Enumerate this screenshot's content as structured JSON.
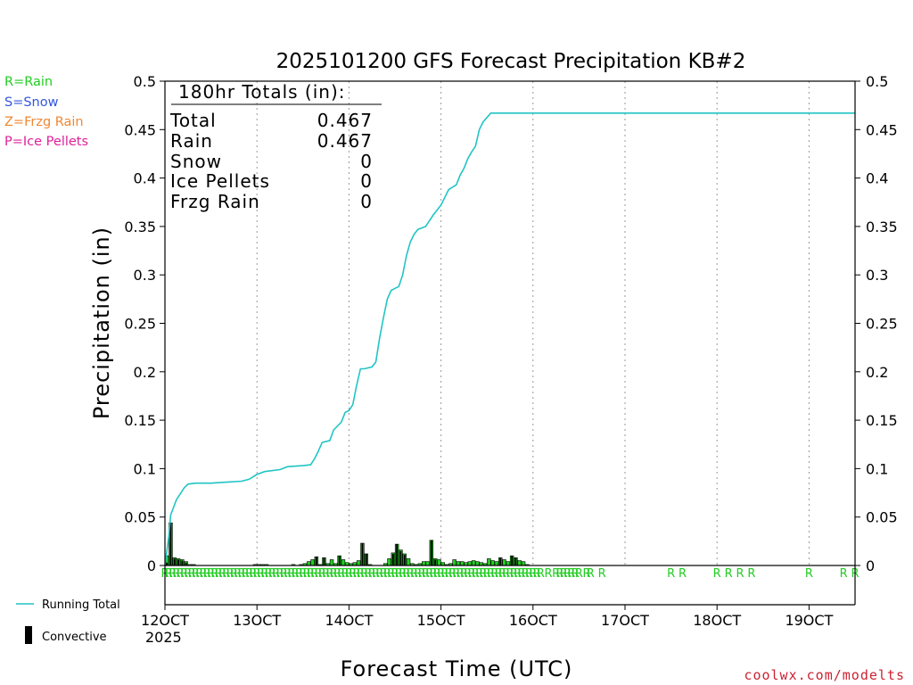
{
  "chart_data": {
    "type": "bar",
    "title": "2025101200 GFS Forecast Precipitation KB#2",
    "ylabel": "Precipitation (in)",
    "xlabel": "Forecast Time (UTC)",
    "ylim": [
      0,
      0.5
    ],
    "xlim_hours": [
      0,
      180
    ],
    "y_ticks": [
      "0",
      "0.05",
      "0.1",
      "0.15",
      "0.2",
      "0.25",
      "0.3",
      "0.35",
      "0.4",
      "0.45",
      "0.5"
    ],
    "x_ticks": [
      {
        "hour": 0,
        "label": "12OCT"
      },
      {
        "hour": 24,
        "label": "13OCT"
      },
      {
        "hour": 48,
        "label": "14OCT"
      },
      {
        "hour": 72,
        "label": "15OCT"
      },
      {
        "hour": 96,
        "label": "16OCT"
      },
      {
        "hour": 120,
        "label": "17OCT"
      },
      {
        "hour": 144,
        "label": "18OCT"
      },
      {
        "hour": 168,
        "label": "19OCT"
      }
    ],
    "year_label": "2025",
    "type_legend": [
      {
        "label": "R=Rain",
        "color": "#22cc22"
      },
      {
        "label": "S=Snow",
        "color": "#3355dd"
      },
      {
        "label": "Z=Frzg Rain",
        "color": "#ee8833"
      },
      {
        "label": "P=Ice Pellets",
        "color": "#dd2299"
      }
    ],
    "series_legend": [
      {
        "label": "Running Total",
        "color": "#22c4c4"
      },
      {
        "label": "Convective",
        "color": "#000000"
      }
    ],
    "totals_box": {
      "header": "180hr Totals (in):",
      "rows": [
        {
          "label": "Total",
          "value": "0.467"
        },
        {
          "label": "Rain",
          "value": "0.467"
        },
        {
          "label": "Snow",
          "value": "0"
        },
        {
          "label": "Ice Pellets",
          "value": "0"
        },
        {
          "label": "Frzg Rain",
          "value": "0"
        }
      ]
    },
    "running_total": [
      [
        0,
        0
      ],
      [
        1,
        0.03
      ],
      [
        1.5,
        0.052
      ],
      [
        3,
        0.068
      ],
      [
        5,
        0.08
      ],
      [
        6,
        0.084
      ],
      [
        8,
        0.085
      ],
      [
        12,
        0.085
      ],
      [
        16,
        0.086
      ],
      [
        20,
        0.087
      ],
      [
        22,
        0.089
      ],
      [
        24,
        0.094
      ],
      [
        26,
        0.097
      ],
      [
        30,
        0.099
      ],
      [
        32,
        0.102
      ],
      [
        36,
        0.103
      ],
      [
        38,
        0.104
      ],
      [
        39,
        0.11
      ],
      [
        40,
        0.118
      ],
      [
        41,
        0.127
      ],
      [
        43,
        0.129
      ],
      [
        44,
        0.14
      ],
      [
        46,
        0.148
      ],
      [
        47,
        0.158
      ],
      [
        48,
        0.16
      ],
      [
        49,
        0.166
      ],
      [
        50,
        0.186
      ],
      [
        51,
        0.203
      ],
      [
        52,
        0.203
      ],
      [
        54,
        0.205
      ],
      [
        55,
        0.21
      ],
      [
        56,
        0.235
      ],
      [
        57,
        0.256
      ],
      [
        58,
        0.275
      ],
      [
        59,
        0.284
      ],
      [
        61,
        0.288
      ],
      [
        62,
        0.3
      ],
      [
        63,
        0.32
      ],
      [
        64,
        0.334
      ],
      [
        65,
        0.342
      ],
      [
        66,
        0.347
      ],
      [
        68,
        0.35
      ],
      [
        70,
        0.362
      ],
      [
        72,
        0.372
      ],
      [
        73,
        0.38
      ],
      [
        74,
        0.388
      ],
      [
        76,
        0.393
      ],
      [
        77,
        0.403
      ],
      [
        78,
        0.41
      ],
      [
        79,
        0.42
      ],
      [
        80,
        0.427
      ],
      [
        81,
        0.433
      ],
      [
        82,
        0.45
      ],
      [
        83,
        0.458
      ],
      [
        85,
        0.467
      ],
      [
        180,
        0.467
      ]
    ],
    "hourly_precip": [
      [
        0.5,
        0.01
      ],
      [
        1.5,
        0.044
      ],
      [
        2.5,
        0.008
      ],
      [
        3.5,
        0.007
      ],
      [
        4.5,
        0.006
      ],
      [
        5.5,
        0.004
      ],
      [
        6.5,
        0.001
      ],
      [
        7.5,
        0.001
      ],
      [
        23.5,
        0.001
      ],
      [
        24.5,
        0.001
      ],
      [
        25.5,
        0.001
      ],
      [
        26.5,
        0.001
      ],
      [
        33.5,
        0.001
      ],
      [
        35.5,
        0.001
      ],
      [
        36.5,
        0.002
      ],
      [
        37.5,
        0.004
      ],
      [
        38.5,
        0.006
      ],
      [
        39.5,
        0.009
      ],
      [
        40.5,
        0.001
      ],
      [
        41.5,
        0.008
      ],
      [
        42.5,
        0.002
      ],
      [
        43.5,
        0.006
      ],
      [
        44.5,
        0.002
      ],
      [
        45.5,
        0.01
      ],
      [
        46.5,
        0.006
      ],
      [
        47.5,
        0.003
      ],
      [
        48.5,
        0.002
      ],
      [
        49.5,
        0.003
      ],
      [
        50.5,
        0.005
      ],
      [
        51.5,
        0.023
      ],
      [
        52.5,
        0.012
      ],
      [
        53.5,
        0.001
      ],
      [
        57.5,
        0.002
      ],
      [
        58.5,
        0.007
      ],
      [
        59.5,
        0.013
      ],
      [
        60.5,
        0.022
      ],
      [
        61.5,
        0.016
      ],
      [
        62.5,
        0.012
      ],
      [
        63.5,
        0.007
      ],
      [
        64.5,
        0.002
      ],
      [
        65.5,
        0.001
      ],
      [
        66.5,
        0.002
      ],
      [
        67.5,
        0.004
      ],
      [
        68.5,
        0.004
      ],
      [
        69.5,
        0.026
      ],
      [
        70.5,
        0.007
      ],
      [
        71.5,
        0.006
      ],
      [
        72.5,
        0.003
      ],
      [
        73.5,
        0.001
      ],
      [
        74.5,
        0.002
      ],
      [
        75.5,
        0.006
      ],
      [
        76.5,
        0.004
      ],
      [
        77.5,
        0.004
      ],
      [
        78.5,
        0.003
      ],
      [
        79.5,
        0.004
      ],
      [
        80.5,
        0.005
      ],
      [
        81.5,
        0.004
      ],
      [
        82.5,
        0.003
      ],
      [
        83.5,
        0.002
      ],
      [
        84.5,
        0.007
      ],
      [
        85.5,
        0.005
      ],
      [
        86.5,
        0.004
      ],
      [
        87.5,
        0.008
      ],
      [
        88.5,
        0.006
      ],
      [
        89.5,
        0.004
      ],
      [
        90.5,
        0.01
      ],
      [
        91.5,
        0.008
      ],
      [
        92.5,
        0.005
      ],
      [
        93.5,
        0.004
      ],
      [
        94.5,
        0.001
      ]
    ],
    "convective_precip": [
      [
        0.5,
        0.003
      ],
      [
        1.5,
        0.044
      ],
      [
        2.5,
        0.007
      ],
      [
        3.5,
        0.006
      ],
      [
        4.5,
        0.005
      ],
      [
        5.5,
        0.003
      ],
      [
        39.5,
        0.009
      ],
      [
        41.5,
        0.008
      ],
      [
        45.5,
        0.01
      ],
      [
        51.5,
        0.023
      ],
      [
        52.5,
        0.012
      ],
      [
        59.5,
        0.012
      ],
      [
        60.5,
        0.022
      ],
      [
        61.5,
        0.015
      ],
      [
        62.5,
        0.011
      ],
      [
        69.5,
        0.026
      ],
      [
        70.5,
        0.006
      ],
      [
        87.5,
        0.008
      ],
      [
        90.5,
        0.01
      ],
      [
        91.5,
        0.008
      ]
    ],
    "precip_type_markers": {
      "symbol": "R",
      "hours": [
        0,
        1,
        2,
        3,
        4,
        5,
        6,
        7,
        8,
        9,
        10,
        11,
        12,
        13,
        14,
        15,
        16,
        17,
        18,
        19,
        20,
        21,
        22,
        23,
        24,
        25,
        26,
        27,
        28,
        29,
        30,
        31,
        32,
        33,
        34,
        35,
        36,
        37,
        38,
        39,
        40,
        41,
        42,
        43,
        44,
        45,
        46,
        47,
        48,
        49,
        50,
        51,
        52,
        53,
        54,
        55,
        56,
        57,
        58,
        59,
        60,
        61,
        62,
        63,
        64,
        65,
        66,
        67,
        68,
        69,
        70,
        71,
        72,
        73,
        74,
        75,
        76,
        77,
        78,
        79,
        80,
        81,
        82,
        83,
        84,
        85,
        86,
        87,
        88,
        89,
        90,
        91,
        92,
        93,
        94,
        95,
        96,
        97,
        98,
        100,
        102,
        103,
        104,
        105,
        106,
        107,
        108,
        110,
        111,
        114,
        132,
        135,
        144,
        147,
        150,
        153,
        168,
        177,
        180
      ]
    },
    "credit": "coolwx.com/modelts"
  }
}
